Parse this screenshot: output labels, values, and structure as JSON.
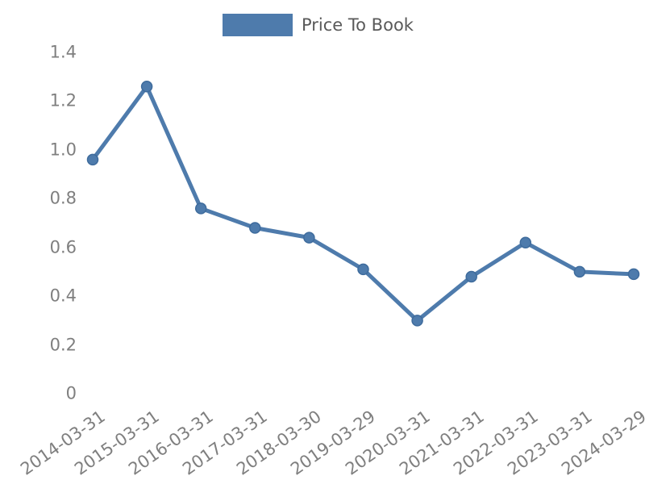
{
  "chart": {
    "legend": {
      "label": "Price To Book"
    },
    "chart_data": {
      "type": "line",
      "title": "",
      "xlabel": "",
      "ylabel": "",
      "categories": [
        "2014-03-31",
        "2015-03-31",
        "2016-03-31",
        "2017-03-31",
        "2018-03-30",
        "2019-03-29",
        "2020-03-31",
        "2021-03-31",
        "2022-03-31",
        "2023-03-31",
        "2024-03-29"
      ],
      "series": [
        {
          "name": "Price To Book",
          "values": [
            0.96,
            1.26,
            0.76,
            0.68,
            0.64,
            0.51,
            0.3,
            0.48,
            0.62,
            0.5,
            0.49
          ]
        }
      ],
      "ylim": [
        0,
        1.4
      ],
      "y_ticks": [
        0,
        0.2,
        0.4,
        0.6,
        0.8,
        1.0,
        1.2,
        1.4
      ],
      "y_tick_labels": [
        "0",
        "0.2",
        "0.4",
        "0.6",
        "0.8",
        "1.0",
        "1.2",
        "1.4"
      ],
      "x_tick_rotation_deg": 35,
      "grid": false,
      "legend_position": "top-center",
      "line_color": "#4e7bac",
      "marker": "circle",
      "marker_edge_color": "#3e6b9c",
      "tick_label_color": "#7f7f7f",
      "legend_text_color": "#595959"
    }
  }
}
